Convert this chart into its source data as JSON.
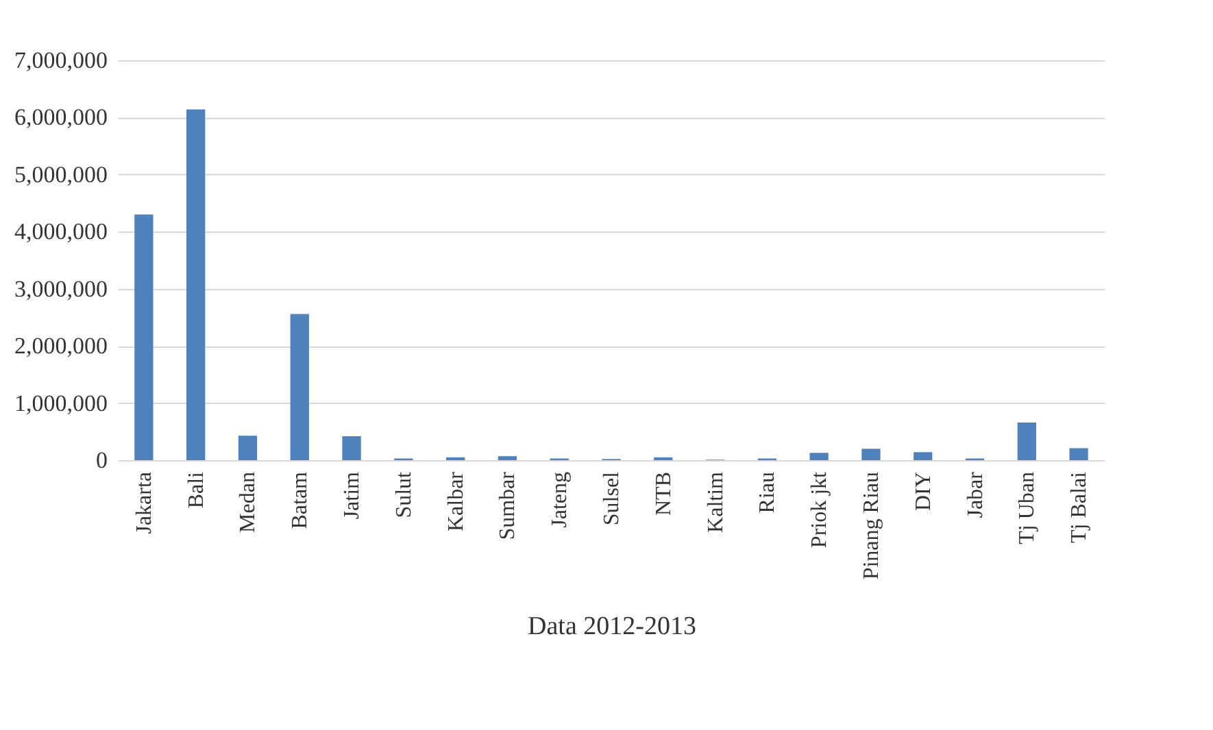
{
  "chart_data": {
    "type": "bar",
    "xlabel": "Data 2012-2013",
    "categories": [
      "Jakarta",
      "Bali",
      "Medan",
      "Batam",
      "Jatim",
      "Sulut",
      "Kalbar",
      "Sumbar",
      "Jateng",
      "Sulsel",
      "NTB",
      "Kaltim",
      "Riau",
      "Priok jkt",
      "Pinang Riau",
      "DIY",
      "Jabar",
      "Tj Uban",
      "Tj Balai"
    ],
    "values": [
      4300000,
      6140000,
      430000,
      2560000,
      420000,
      30000,
      50000,
      70000,
      30000,
      20000,
      50000,
      10000,
      30000,
      130000,
      200000,
      140000,
      30000,
      660000,
      210000
    ],
    "color": "#4f81bd",
    "ylim": [
      0,
      7000000
    ],
    "yticks": [
      {
        "value": 0,
        "label": "0"
      },
      {
        "value": 1000000,
        "label": "1,000,000"
      },
      {
        "value": 2000000,
        "label": "2,000,000"
      },
      {
        "value": 3000000,
        "label": "3,000,000"
      },
      {
        "value": 4000000,
        "label": "4,000,000"
      },
      {
        "value": 5000000,
        "label": "5,000,000"
      },
      {
        "value": 6000000,
        "label": "6,000,000"
      },
      {
        "value": 7000000,
        "label": "7,000,000"
      }
    ],
    "grid": "y"
  }
}
